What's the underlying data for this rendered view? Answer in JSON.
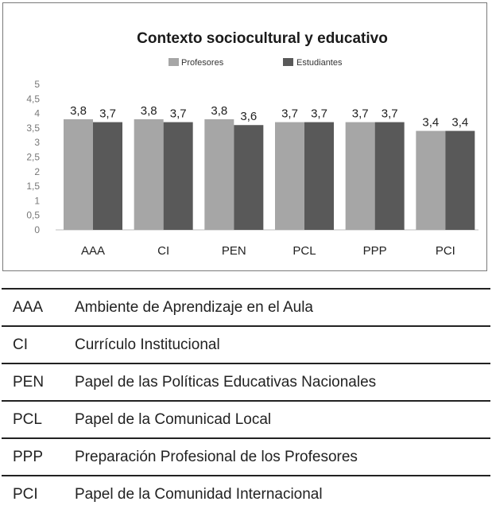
{
  "chart_data": {
    "type": "bar",
    "title": "Contexto sociocultural y educativo",
    "categories": [
      "AAA",
      "CI",
      "PEN",
      "PCL",
      "PPP",
      "PCI"
    ],
    "series": [
      {
        "name": "Profesores",
        "values": [
          3.8,
          3.8,
          3.8,
          3.7,
          3.7,
          3.4
        ],
        "labels": [
          "3,8",
          "3,8",
          "3,8",
          "3,7",
          "3,7",
          "3,4"
        ],
        "color": "#a6a6a6"
      },
      {
        "name": "Estudiantes",
        "values": [
          3.7,
          3.7,
          3.6,
          3.7,
          3.7,
          3.4
        ],
        "labels": [
          "3,7",
          "3,7",
          "3,6",
          "3,7",
          "3,7",
          "3,4"
        ],
        "color": "#595959"
      }
    ],
    "yticks": [
      0,
      0.5,
      1,
      1.5,
      2,
      2.5,
      3,
      3.5,
      4,
      4.5,
      5
    ],
    "ytick_labels": [
      "0",
      "0,5",
      "1",
      "1,5",
      "2",
      "2,5",
      "3",
      "3,5",
      "4",
      "4,5",
      "5"
    ],
    "ylim": [
      0,
      5
    ],
    "grid": false,
    "legend": "top-center"
  },
  "table": {
    "rows": [
      {
        "abbr": "AAA",
        "desc": "Ambiente de Aprendizaje en el Aula"
      },
      {
        "abbr": "CI",
        "desc": "Currículo Institucional"
      },
      {
        "abbr": "PEN",
        "desc": "Papel de las Políticas Educativas Nacionales"
      },
      {
        "abbr": "PCL",
        "desc": "Papel de la Comunicad Local"
      },
      {
        "abbr": "PPP",
        "desc": "Preparación Profesional de los Profesores"
      },
      {
        "abbr": "PCI",
        "desc": "Papel de la Comunidad Internacional"
      }
    ]
  }
}
